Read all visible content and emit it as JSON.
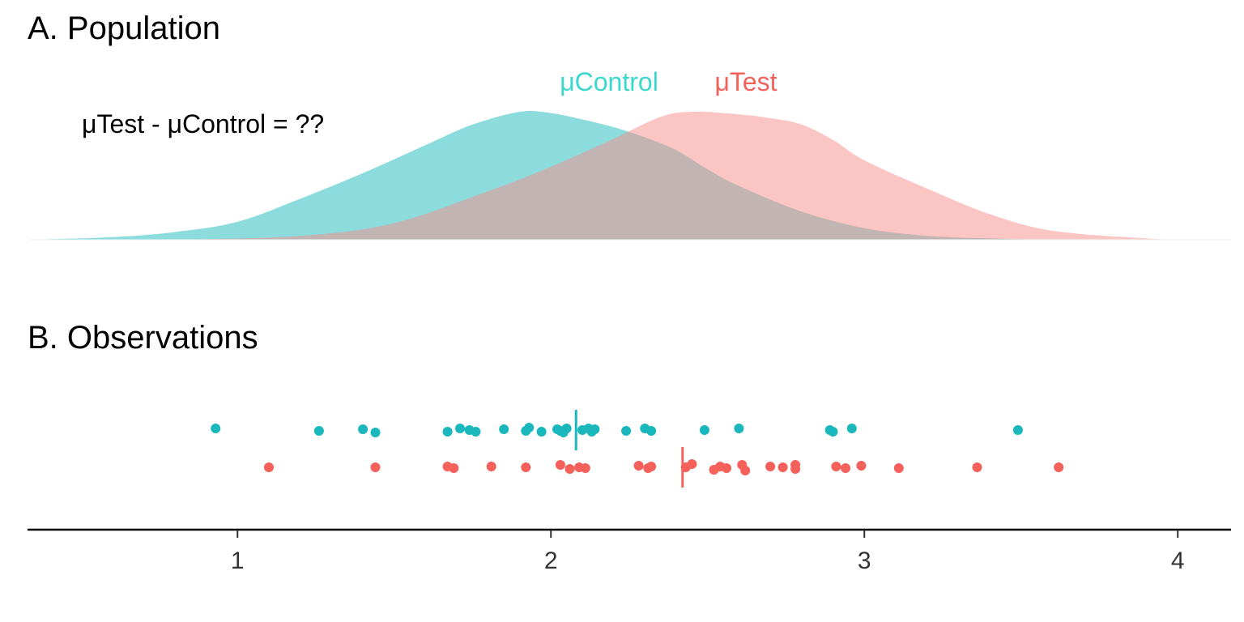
{
  "colors": {
    "control": "#1ab8bd",
    "test": "#f4615b",
    "control_density": "#40c4c7",
    "test_density": "#f68c87",
    "control_label": "#3ad8cd",
    "test_label": "#f4615b",
    "axis": "#000000"
  },
  "panel_a": {
    "title": "A. Population",
    "mu_control_label": "μControl",
    "mu_test_label": "μTest",
    "difference_label": "μTest - μControl = ??"
  },
  "panel_b": {
    "title": "B. Observations"
  },
  "chart_data": [
    {
      "type": "area",
      "title": "A. Population",
      "xlim": [
        0.33,
        4.17
      ],
      "series": [
        {
          "name": "μControl",
          "x": [
            0.33,
            0.6,
            0.8,
            1.0,
            1.2,
            1.4,
            1.6,
            1.75,
            1.9,
            2.0,
            2.1,
            2.2,
            2.3,
            2.4,
            2.5,
            2.6,
            2.8,
            3.0,
            3.2,
            3.4,
            3.6
          ],
          "y": [
            0.0,
            0.02,
            0.06,
            0.14,
            0.32,
            0.52,
            0.74,
            0.9,
            1.0,
            0.99,
            0.94,
            0.88,
            0.8,
            0.7,
            0.55,
            0.42,
            0.22,
            0.09,
            0.03,
            0.01,
            0.0
          ]
        },
        {
          "name": "μTest",
          "x": [
            0.8,
            1.2,
            1.5,
            1.8,
            2.0,
            2.2,
            2.35,
            2.45,
            2.6,
            2.7,
            2.8,
            2.9,
            3.0,
            3.2,
            3.4,
            3.6,
            3.9,
            4.05
          ],
          "y": [
            0.0,
            0.03,
            0.13,
            0.38,
            0.57,
            0.79,
            0.96,
            1.0,
            0.98,
            0.95,
            0.9,
            0.78,
            0.62,
            0.4,
            0.2,
            0.07,
            0.01,
            0.0
          ]
        }
      ]
    },
    {
      "type": "scatter",
      "title": "B. Observations",
      "xlim": [
        0.33,
        4.17
      ],
      "x_ticks": [
        1,
        2,
        3,
        4
      ],
      "tick_labels": [
        "1",
        "2",
        "3",
        "4"
      ],
      "series": [
        {
          "name": "Control",
          "mean": 2.08,
          "x": [
            0.93,
            1.26,
            1.4,
            1.44,
            1.67,
            1.71,
            1.74,
            1.76,
            1.85,
            1.92,
            1.93,
            1.97,
            2.02,
            2.03,
            2.04,
            2.05,
            2.1,
            2.12,
            2.13,
            2.14,
            2.24,
            2.3,
            2.32,
            2.49,
            2.6,
            2.89,
            2.9,
            2.96,
            3.49
          ]
        },
        {
          "name": "Test",
          "mean": 2.42,
          "x": [
            1.1,
            1.44,
            1.67,
            1.69,
            1.81,
            1.92,
            2.03,
            2.06,
            2.09,
            2.11,
            2.28,
            2.31,
            2.32,
            2.43,
            2.45,
            2.52,
            2.54,
            2.56,
            2.61,
            2.62,
            2.7,
            2.74,
            2.78,
            2.78,
            2.91,
            2.94,
            2.99,
            3.11,
            3.36,
            3.62
          ]
        }
      ]
    }
  ]
}
